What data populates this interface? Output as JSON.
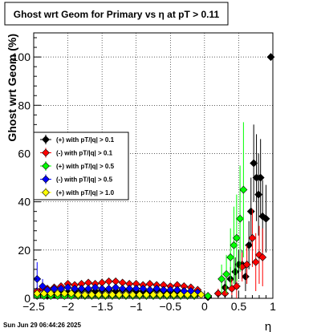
{
  "chart_data": {
    "type": "scatter",
    "title": "Ghost wrt Geom for Primary vs    η at pT > 0.11",
    "xlabel": "η",
    "ylabel": "Ghost wrt Geom (%)",
    "xlim": [
      -2.5,
      1.0
    ],
    "ylim": [
      0,
      110
    ],
    "x_ticks": [
      -2.5,
      -2,
      -1.5,
      -1,
      -0.5,
      0,
      0.5,
      1
    ],
    "x_tick_labels": [
      "−2.5",
      "−2",
      "−1.5",
      "−1",
      "−0.5",
      "0",
      "0.5",
      "1"
    ],
    "y_ticks": [
      0,
      20,
      40,
      60,
      80,
      100
    ],
    "y_tick_labels": [
      "0",
      "20",
      "40",
      "60",
      "80",
      "100"
    ],
    "grid": true,
    "legend_position": "middle-left",
    "footer": "Sun Jun 29 06:44:26 2025",
    "series": [
      {
        "name": "(+) with pT/|q| > 0.1",
        "color": "#000000",
        "points": [
          [
            -2.45,
            2
          ],
          [
            -2.37,
            1.5
          ],
          [
            -2.3,
            1
          ],
          [
            -2.2,
            1.5
          ],
          [
            -2.1,
            2
          ],
          [
            -2.0,
            2.5
          ],
          [
            -1.9,
            3
          ],
          [
            -1.8,
            3.5
          ],
          [
            -1.7,
            3.5
          ],
          [
            -1.6,
            3
          ],
          [
            -1.5,
            3.5
          ],
          [
            -1.4,
            3.5
          ],
          [
            -1.3,
            3
          ],
          [
            -1.2,
            3.5
          ],
          [
            -1.1,
            3.5
          ],
          [
            -1.0,
            3
          ],
          [
            -0.9,
            3
          ],
          [
            -0.8,
            3
          ],
          [
            -0.7,
            3.5
          ],
          [
            -0.6,
            3
          ],
          [
            -0.5,
            3
          ],
          [
            -0.4,
            3
          ],
          [
            -0.3,
            3
          ],
          [
            -0.2,
            2.5
          ],
          [
            -0.1,
            2
          ],
          [
            0.05,
            0.5
          ],
          [
            0.2,
            2
          ],
          [
            0.3,
            4.5
          ],
          [
            0.38,
            8
          ],
          [
            0.45,
            11
          ],
          [
            0.5,
            14
          ],
          [
            0.55,
            14
          ],
          [
            0.6,
            9
          ],
          [
            0.65,
            22
          ],
          [
            0.68,
            36
          ],
          [
            0.72,
            56
          ],
          [
            0.76,
            50
          ],
          [
            0.79,
            43
          ],
          [
            0.82,
            50
          ],
          [
            0.85,
            34
          ],
          [
            0.9,
            33
          ],
          [
            0.97,
            100
          ]
        ],
        "errors": [
          0.5,
          0.5,
          0.5,
          0.5,
          0.5,
          0.5,
          0.5,
          0.5,
          0.5,
          0.5,
          0.5,
          0.5,
          0.5,
          0.5,
          0.5,
          0.5,
          0.5,
          0.5,
          0.5,
          0.5,
          0.5,
          0.5,
          0.5,
          0.5,
          0.5,
          0.5,
          1.5,
          3,
          5,
          6,
          6,
          6,
          6,
          10,
          14,
          16,
          18,
          17,
          16,
          15,
          14,
          0
        ]
      },
      {
        "name": "(-) with pT/|q| > 0.1",
        "color": "#ff0000",
        "points": [
          [
            -2.45,
            3
          ],
          [
            -2.37,
            4
          ],
          [
            -2.3,
            4
          ],
          [
            -2.2,
            4.5
          ],
          [
            -2.1,
            5
          ],
          [
            -2.0,
            6
          ],
          [
            -1.9,
            5.5
          ],
          [
            -1.8,
            6
          ],
          [
            -1.7,
            6.5
          ],
          [
            -1.6,
            6
          ],
          [
            -1.5,
            6.5
          ],
          [
            -1.4,
            7
          ],
          [
            -1.3,
            7
          ],
          [
            -1.2,
            6.5
          ],
          [
            -1.1,
            6
          ],
          [
            -1.0,
            6
          ],
          [
            -0.9,
            5.5
          ],
          [
            -0.8,
            6
          ],
          [
            -0.7,
            5.5
          ],
          [
            -0.6,
            5.5
          ],
          [
            -0.5,
            5
          ],
          [
            -0.4,
            5.5
          ],
          [
            -0.3,
            5
          ],
          [
            -0.2,
            4.5
          ],
          [
            -0.1,
            3.5
          ],
          [
            0.2,
            2
          ],
          [
            0.3,
            2
          ],
          [
            0.4,
            4
          ],
          [
            0.47,
            5
          ],
          [
            0.55,
            13
          ],
          [
            0.62,
            14
          ],
          [
            0.7,
            25
          ],
          [
            0.75,
            15
          ],
          [
            0.8,
            18
          ],
          [
            0.85,
            17
          ]
        ],
        "errors": [
          1,
          1,
          1,
          1,
          1,
          1,
          1,
          1,
          1,
          1,
          1,
          1,
          1,
          1,
          1,
          1,
          1,
          1,
          1,
          1,
          1,
          1,
          1,
          1,
          1,
          2,
          3,
          4,
          5,
          6,
          8,
          12,
          12,
          12,
          12
        ]
      },
      {
        "name": "(+) with pT/|q| > 0.5",
        "color": "#00ff00",
        "points": [
          [
            -2.45,
            1
          ],
          [
            -2.35,
            1
          ],
          [
            -2.25,
            1
          ],
          [
            -2.15,
            1
          ],
          [
            -2.05,
            1
          ],
          [
            -1.95,
            1
          ],
          [
            -1.85,
            1
          ],
          [
            -1.75,
            1
          ],
          [
            -1.65,
            1
          ],
          [
            -1.55,
            1
          ],
          [
            -1.45,
            1
          ],
          [
            -1.35,
            1
          ],
          [
            -1.25,
            1
          ],
          [
            -1.15,
            1
          ],
          [
            -1.05,
            1
          ],
          [
            -0.95,
            1
          ],
          [
            -0.85,
            1
          ],
          [
            -0.75,
            1
          ],
          [
            -0.65,
            1
          ],
          [
            -0.55,
            1
          ],
          [
            -0.45,
            1
          ],
          [
            -0.35,
            1
          ],
          [
            -0.25,
            1
          ],
          [
            -0.15,
            1
          ],
          [
            0.05,
            1
          ],
          [
            0.25,
            8
          ],
          [
            0.32,
            10
          ],
          [
            0.38,
            17
          ],
          [
            0.43,
            22
          ],
          [
            0.47,
            25
          ],
          [
            0.52,
            33
          ],
          [
            0.57,
            45
          ]
        ],
        "errors": [
          0.5,
          0.5,
          0.5,
          0.5,
          0.5,
          0.5,
          0.5,
          0.5,
          0.5,
          0.5,
          0.5,
          0.5,
          0.5,
          0.5,
          0.5,
          0.5,
          0.5,
          0.5,
          0.5,
          0.5,
          0.5,
          0.5,
          0.5,
          0.5,
          0.5,
          6,
          8,
          12,
          16,
          18,
          22,
          28
        ]
      },
      {
        "name": "(-) with pT/|q| > 0.5",
        "color": "#0000ff",
        "points": [
          [
            -2.45,
            8
          ],
          [
            -2.37,
            5
          ],
          [
            -2.3,
            3.5
          ],
          [
            -2.2,
            4
          ],
          [
            -2.1,
            4
          ],
          [
            -2.0,
            4.5
          ],
          [
            -1.9,
            4
          ],
          [
            -1.8,
            4
          ],
          [
            -1.7,
            4
          ],
          [
            -1.6,
            4.5
          ],
          [
            -1.5,
            4
          ],
          [
            -1.4,
            4
          ],
          [
            -1.3,
            4.5
          ],
          [
            -1.2,
            4
          ],
          [
            -1.1,
            4
          ],
          [
            -1.0,
            4
          ],
          [
            -0.9,
            4
          ],
          [
            -0.8,
            3.5
          ],
          [
            -0.7,
            4
          ],
          [
            -0.6,
            3.5
          ],
          [
            -0.5,
            3.5
          ],
          [
            -0.4,
            3.5
          ],
          [
            -0.3,
            3
          ],
          [
            -0.2,
            3
          ],
          [
            -0.1,
            2.5
          ]
        ],
        "errors": [
          7,
          3,
          1.5,
          1,
          1,
          1,
          1,
          1,
          1,
          1,
          1,
          1,
          1,
          1,
          1,
          1,
          1,
          1,
          1,
          1,
          1,
          1,
          1,
          1,
          1
        ]
      },
      {
        "name": "(+) with pT/|q| > 1.0",
        "color": "#ffff00",
        "points": [
          [
            -2.45,
            2
          ],
          [
            -2.35,
            2
          ],
          [
            -2.25,
            2
          ],
          [
            -2.15,
            2
          ],
          [
            -2.05,
            2
          ],
          [
            -1.95,
            2
          ],
          [
            -1.85,
            1.5
          ],
          [
            -1.75,
            1.5
          ],
          [
            -1.65,
            1.5
          ],
          [
            -1.55,
            1.5
          ],
          [
            -1.45,
            1.5
          ],
          [
            -1.35,
            1.5
          ],
          [
            -1.25,
            1.5
          ],
          [
            -1.15,
            1.5
          ],
          [
            -1.05,
            1.5
          ],
          [
            -0.95,
            1.5
          ],
          [
            -0.85,
            1.5
          ],
          [
            -0.75,
            1.5
          ],
          [
            -0.65,
            1.5
          ],
          [
            -0.55,
            1.5
          ],
          [
            -0.45,
            1.5
          ],
          [
            -0.35,
            1.5
          ],
          [
            -0.25,
            1.5
          ],
          [
            -0.15,
            1.5
          ],
          [
            -0.05,
            1.5
          ]
        ],
        "errors": [
          0.5,
          0.5,
          0.5,
          0.5,
          0.5,
          0.5,
          0.5,
          0.5,
          0.5,
          0.5,
          0.5,
          0.5,
          0.5,
          0.5,
          0.5,
          0.5,
          0.5,
          0.5,
          0.5,
          0.5,
          0.5,
          0.5,
          0.5,
          0.5,
          0.5
        ]
      }
    ]
  }
}
